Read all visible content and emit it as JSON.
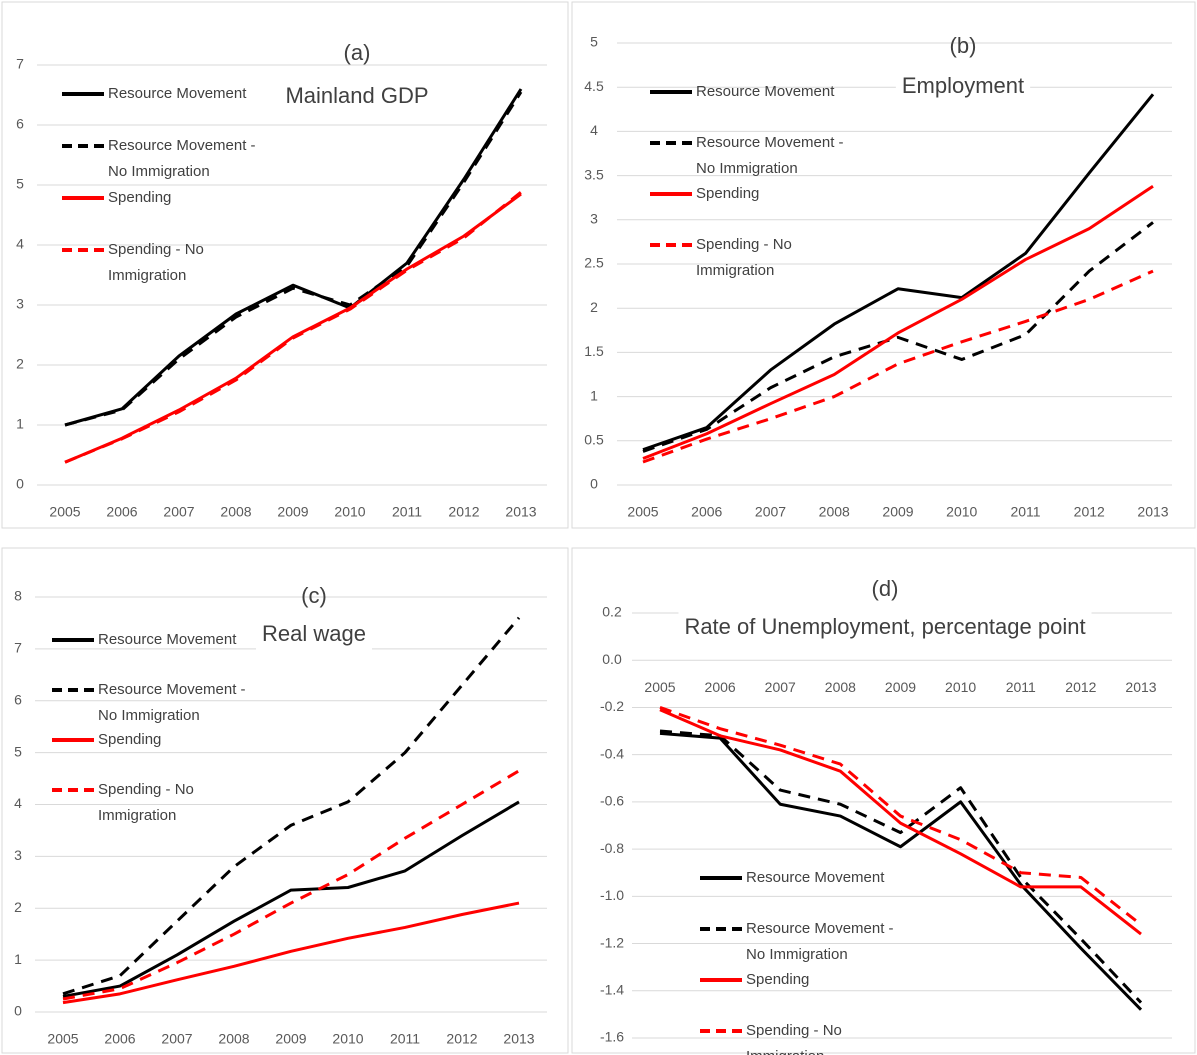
{
  "chart_data": [
    {
      "type": "line",
      "title": "(a)",
      "subtitle": "Mainland GDP",
      "categories": [
        "2005",
        "2006",
        "2007",
        "2008",
        "2009",
        "2010",
        "2011",
        "2012",
        "2013"
      ],
      "ylim": [
        0,
        7
      ],
      "yticks": [
        0,
        1,
        2,
        3,
        4,
        5,
        6,
        7
      ],
      "grid": true,
      "series": [
        {
          "name": "Resource Movement",
          "color": "#000000",
          "dashed": false,
          "values": [
            1.0,
            1.27,
            2.15,
            2.85,
            3.33,
            2.95,
            3.7,
            5.1,
            6.6
          ]
        },
        {
          "name": "Resource Movement - No Immigration",
          "color": "#000000",
          "dashed": true,
          "values": [
            1.0,
            1.25,
            2.1,
            2.8,
            3.28,
            3.0,
            3.65,
            5.05,
            6.55
          ]
        },
        {
          "name": "Spending",
          "color": "#ff0000",
          "dashed": false,
          "values": [
            0.38,
            0.78,
            1.25,
            1.78,
            2.47,
            2.95,
            3.6,
            4.15,
            4.85
          ]
        },
        {
          "name": "Spending - No Immigration",
          "color": "#ff0000",
          "dashed": true,
          "values": [
            0.38,
            0.77,
            1.22,
            1.75,
            2.45,
            2.93,
            3.58,
            4.12,
            4.88
          ]
        }
      ]
    },
    {
      "type": "line",
      "title": "(b)",
      "subtitle": "Employment",
      "categories": [
        "2005",
        "2006",
        "2007",
        "2008",
        "2009",
        "2010",
        "2011",
        "2012",
        "2013"
      ],
      "ylim": [
        0,
        5
      ],
      "yticks": [
        0,
        0.5,
        1,
        1.5,
        2,
        2.5,
        3,
        3.5,
        4,
        4.5,
        5
      ],
      "grid": true,
      "series": [
        {
          "name": "Resource Movement",
          "color": "#000000",
          "dashed": false,
          "values": [
            0.4,
            0.65,
            1.3,
            1.82,
            2.22,
            2.12,
            2.62,
            3.53,
            4.42
          ]
        },
        {
          "name": "Resource Movement - No Immigration",
          "color": "#000000",
          "dashed": true,
          "values": [
            0.38,
            0.63,
            1.1,
            1.45,
            1.67,
            1.42,
            1.7,
            2.42,
            2.97
          ]
        },
        {
          "name": "Spending",
          "color": "#ff0000",
          "dashed": false,
          "values": [
            0.3,
            0.58,
            0.92,
            1.25,
            1.72,
            2.1,
            2.55,
            2.9,
            3.38
          ]
        },
        {
          "name": "Spending - No Immigration",
          "color": "#ff0000",
          "dashed": true,
          "values": [
            0.26,
            0.52,
            0.75,
            1.0,
            1.37,
            1.62,
            1.85,
            2.1,
            2.42
          ]
        }
      ]
    },
    {
      "type": "line",
      "title": "(c)",
      "subtitle": "Real wage",
      "categories": [
        "2005",
        "2006",
        "2007",
        "2008",
        "2009",
        "2010",
        "2011",
        "2012",
        "2013"
      ],
      "ylim": [
        0,
        8
      ],
      "yticks": [
        0,
        1,
        2,
        3,
        4,
        5,
        6,
        7,
        8
      ],
      "grid": true,
      "series": [
        {
          "name": "Resource Movement",
          "color": "#000000",
          "dashed": false,
          "values": [
            0.3,
            0.5,
            1.1,
            1.75,
            2.35,
            2.4,
            2.72,
            3.4,
            4.05
          ]
        },
        {
          "name": "Resource Movement - No Immigration",
          "color": "#000000",
          "dashed": true,
          "values": [
            0.35,
            0.7,
            1.75,
            2.8,
            3.6,
            4.05,
            5.0,
            6.3,
            7.6
          ]
        },
        {
          "name": "Spending",
          "color": "#ff0000",
          "dashed": false,
          "values": [
            0.18,
            0.35,
            0.62,
            0.88,
            1.17,
            1.42,
            1.63,
            1.88,
            2.1
          ]
        },
        {
          "name": "Spending - No Immigration",
          "color": "#ff0000",
          "dashed": true,
          "values": [
            0.25,
            0.45,
            0.95,
            1.5,
            2.1,
            2.65,
            3.35,
            4.0,
            4.65
          ]
        }
      ]
    },
    {
      "type": "line",
      "title": "(d)",
      "subtitle": "Rate of Unemployment, percentage point",
      "categories": [
        "2005",
        "2006",
        "2007",
        "2008",
        "2009",
        "2010",
        "2011",
        "2012",
        "2013"
      ],
      "ylim": [
        -1.6,
        0.2
      ],
      "yticks": [
        0.2,
        {
          "value": 0,
          "label": "0.0"
        },
        -0.2,
        -0.4,
        -0.6,
        -0.8,
        {
          "value": -1,
          "label": "-1.0"
        },
        -1.2,
        -1.4,
        -1.6
      ],
      "grid": true,
      "series": [
        {
          "name": "Resource Movement",
          "color": "#000000",
          "dashed": false,
          "values": [
            -0.31,
            -0.33,
            -0.61,
            -0.66,
            -0.79,
            -0.6,
            -0.95,
            -1.22,
            -1.48
          ]
        },
        {
          "name": "Resource Movement - No Immigration",
          "color": "#000000",
          "dashed": true,
          "values": [
            -0.3,
            -0.32,
            -0.55,
            -0.61,
            -0.73,
            -0.54,
            -0.92,
            -1.18,
            -1.45
          ]
        },
        {
          "name": "Spending",
          "color": "#ff0000",
          "dashed": false,
          "values": [
            -0.21,
            -0.32,
            -0.38,
            -0.47,
            -0.69,
            -0.82,
            -0.96,
            -0.96,
            -1.16
          ]
        },
        {
          "name": "Spending - No Immigration",
          "color": "#ff0000",
          "dashed": true,
          "values": [
            -0.2,
            -0.29,
            -0.36,
            -0.44,
            -0.66,
            -0.76,
            -0.9,
            -0.92,
            -1.12
          ]
        }
      ]
    }
  ]
}
